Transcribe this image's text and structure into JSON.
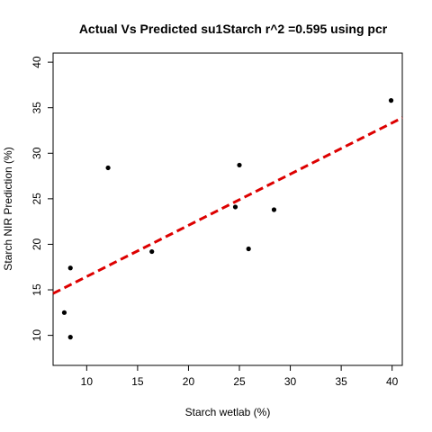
{
  "chart_data": {
    "type": "scatter",
    "title": "Actual Vs Predicted su1Starch r^2 =0.595 using pcr",
    "xlabel": "Starch wetlab (%)",
    "ylabel": "Starch NIR Prediction (%)",
    "xlim": [
      6.7,
      41.0
    ],
    "ylim": [
      6.7,
      41.0
    ],
    "xticks": [
      10,
      15,
      20,
      25,
      30,
      35,
      40
    ],
    "yticks": [
      10,
      15,
      20,
      25,
      30,
      35,
      40
    ],
    "grid": false,
    "legend": "none",
    "points": [
      {
        "x": 7.8,
        "y": 12.5
      },
      {
        "x": 8.4,
        "y": 17.4
      },
      {
        "x": 8.4,
        "y": 9.8
      },
      {
        "x": 12.1,
        "y": 28.4
      },
      {
        "x": 16.4,
        "y": 19.2
      },
      {
        "x": 24.6,
        "y": 24.1
      },
      {
        "x": 25.0,
        "y": 28.7
      },
      {
        "x": 25.9,
        "y": 19.5
      },
      {
        "x": 28.4,
        "y": 23.8
      },
      {
        "x": 39.9,
        "y": 35.8
      }
    ],
    "fit_line": {
      "x": [
        6.7,
        41.0
      ],
      "y": [
        14.6,
        33.9
      ],
      "style": "dashed",
      "color": "#dd0000"
    },
    "point_color": "#000000",
    "axis_color": "#000000"
  }
}
